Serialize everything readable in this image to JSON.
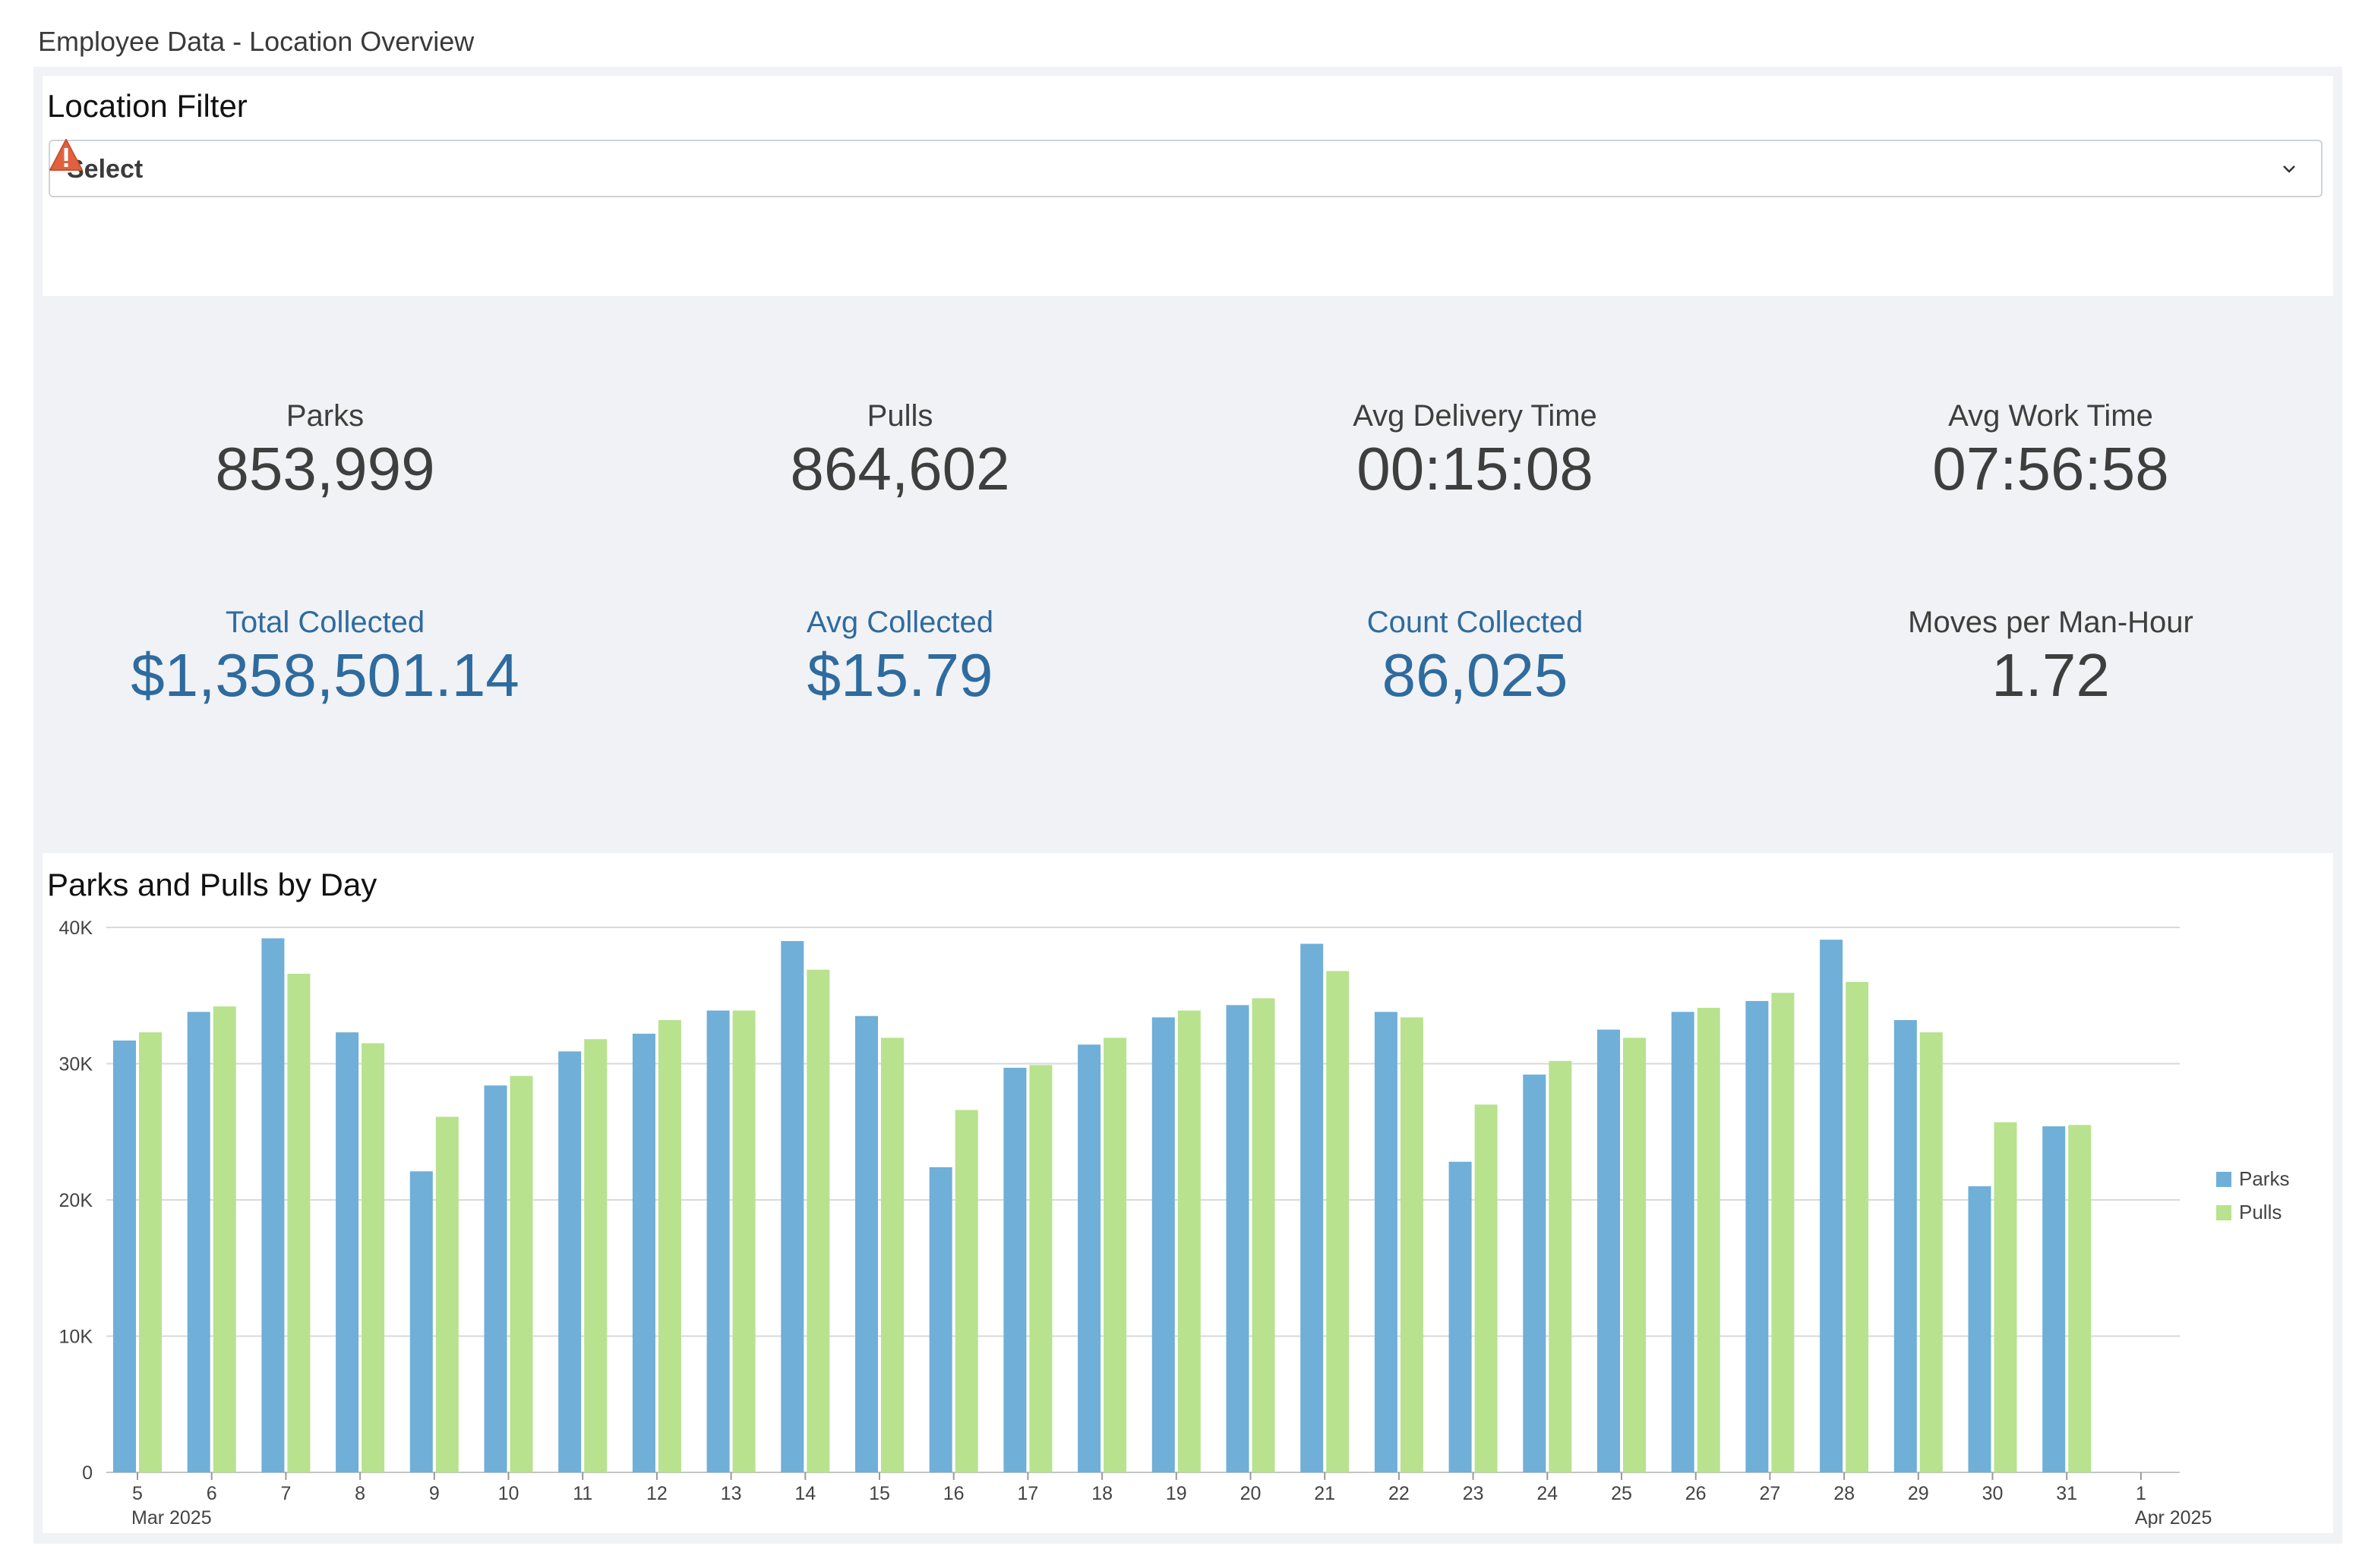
{
  "page": {
    "title": "Employee Data - Location Overview"
  },
  "filter": {
    "title": "Location Filter",
    "select_value": "Select"
  },
  "kpis": [
    {
      "label": "Parks",
      "value": "853,999"
    },
    {
      "label": "Pulls",
      "value": "864,602"
    },
    {
      "label": "Avg Delivery Time",
      "value": "00:15:08"
    },
    {
      "label": "Avg Work Time",
      "value": "07:56:58"
    },
    {
      "label": "Total Collected",
      "value": "$1,358,501.14"
    },
    {
      "label": "Avg Collected",
      "value": "$15.79"
    },
    {
      "label": "Count Collected",
      "value": "86,025"
    },
    {
      "label": "Moves per Man-Hour",
      "value": "1.72"
    }
  ],
  "colors": {
    "parks": "#6fafd8",
    "pulls": "#b8e28e",
    "blue_text": "#2e6b9f"
  },
  "chart": {
    "title": "Parks and Pulls by Day"
  },
  "chart_data": {
    "type": "bar",
    "title": "Parks and Pulls by Day",
    "categories": [
      "5",
      "6",
      "7",
      "8",
      "9",
      "10",
      "11",
      "12",
      "13",
      "14",
      "15",
      "16",
      "17",
      "18",
      "19",
      "20",
      "21",
      "22",
      "23",
      "24",
      "25",
      "26",
      "27",
      "28",
      "29",
      "30",
      "31",
      "1"
    ],
    "x_sublabels": [
      {
        "category": "5",
        "label": "Mar 2025"
      },
      {
        "category": "1",
        "label": "Apr 2025"
      }
    ],
    "series": [
      {
        "name": "Parks",
        "values": [
          31700,
          33800,
          39200,
          32300,
          22100,
          28400,
          30900,
          32200,
          33900,
          39000,
          33500,
          22400,
          29700,
          31400,
          33400,
          34300,
          38800,
          33800,
          22800,
          29200,
          32500,
          33800,
          34600,
          39100,
          33200,
          21000,
          25400,
          0
        ]
      },
      {
        "name": "Pulls",
        "values": [
          32300,
          34200,
          36600,
          31500,
          26100,
          29100,
          31800,
          33200,
          33900,
          36900,
          31900,
          26600,
          29900,
          31900,
          33900,
          34800,
          36800,
          33400,
          27000,
          30200,
          31900,
          34100,
          35200,
          36000,
          32300,
          25700,
          25500,
          0
        ]
      }
    ],
    "y_ticks": [
      "0",
      "10K",
      "20K",
      "30K",
      "40K"
    ],
    "ylim": [
      0,
      40000
    ],
    "legend": {
      "position": "right",
      "entries": [
        "Parks",
        "Pulls"
      ]
    },
    "grid": true
  }
}
